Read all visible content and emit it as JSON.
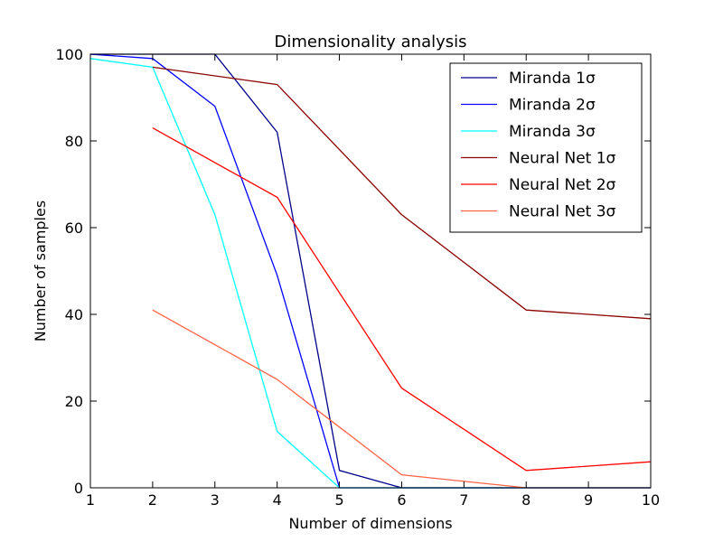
{
  "chart_data": {
    "type": "line",
    "title": "Dimensionality analysis",
    "xlabel": "Number of dimensions",
    "ylabel": "Number of samples",
    "xlim": [
      1,
      10
    ],
    "ylim": [
      0,
      100
    ],
    "xticks": [
      "1",
      "2",
      "3",
      "4",
      "5",
      "6",
      "7",
      "8",
      "9",
      "10"
    ],
    "yticks": [
      "0",
      "20",
      "40",
      "60",
      "80",
      "100"
    ],
    "grid": false,
    "legend_position": "top-right",
    "series": [
      {
        "name": "Miranda 1σ",
        "color": "#00008b",
        "x": [
          1,
          2,
          3,
          4,
          5,
          6,
          8,
          10
        ],
        "y": [
          100,
          100,
          100,
          82,
          4,
          0,
          0,
          0
        ]
      },
      {
        "name": "Miranda 2σ",
        "color": "#0000ff",
        "x": [
          1,
          2,
          3,
          4,
          5,
          6,
          8,
          10
        ],
        "y": [
          100,
          99,
          88,
          49,
          0,
          0,
          0,
          0
        ]
      },
      {
        "name": "Miranda 3σ",
        "color": "#00ffff",
        "x": [
          1,
          2,
          3,
          4,
          5,
          6,
          8,
          10
        ],
        "y": [
          99,
          97,
          63,
          13,
          0,
          0,
          0,
          0
        ]
      },
      {
        "name": "Neural Net 1σ",
        "color": "#8b0000",
        "x": [
          2,
          4,
          6,
          8,
          10
        ],
        "y": [
          97,
          93,
          63,
          41,
          39
        ]
      },
      {
        "name": "Neural Net 2σ",
        "color": "#ff0000",
        "x": [
          2,
          4,
          6,
          8,
          10
        ],
        "y": [
          83,
          67,
          23,
          4,
          6
        ]
      },
      {
        "name": "Neural Net 3σ",
        "color": "#ff6347",
        "x": [
          2,
          4,
          6,
          8,
          10
        ],
        "y": [
          41,
          25,
          3,
          0,
          0
        ]
      }
    ]
  }
}
